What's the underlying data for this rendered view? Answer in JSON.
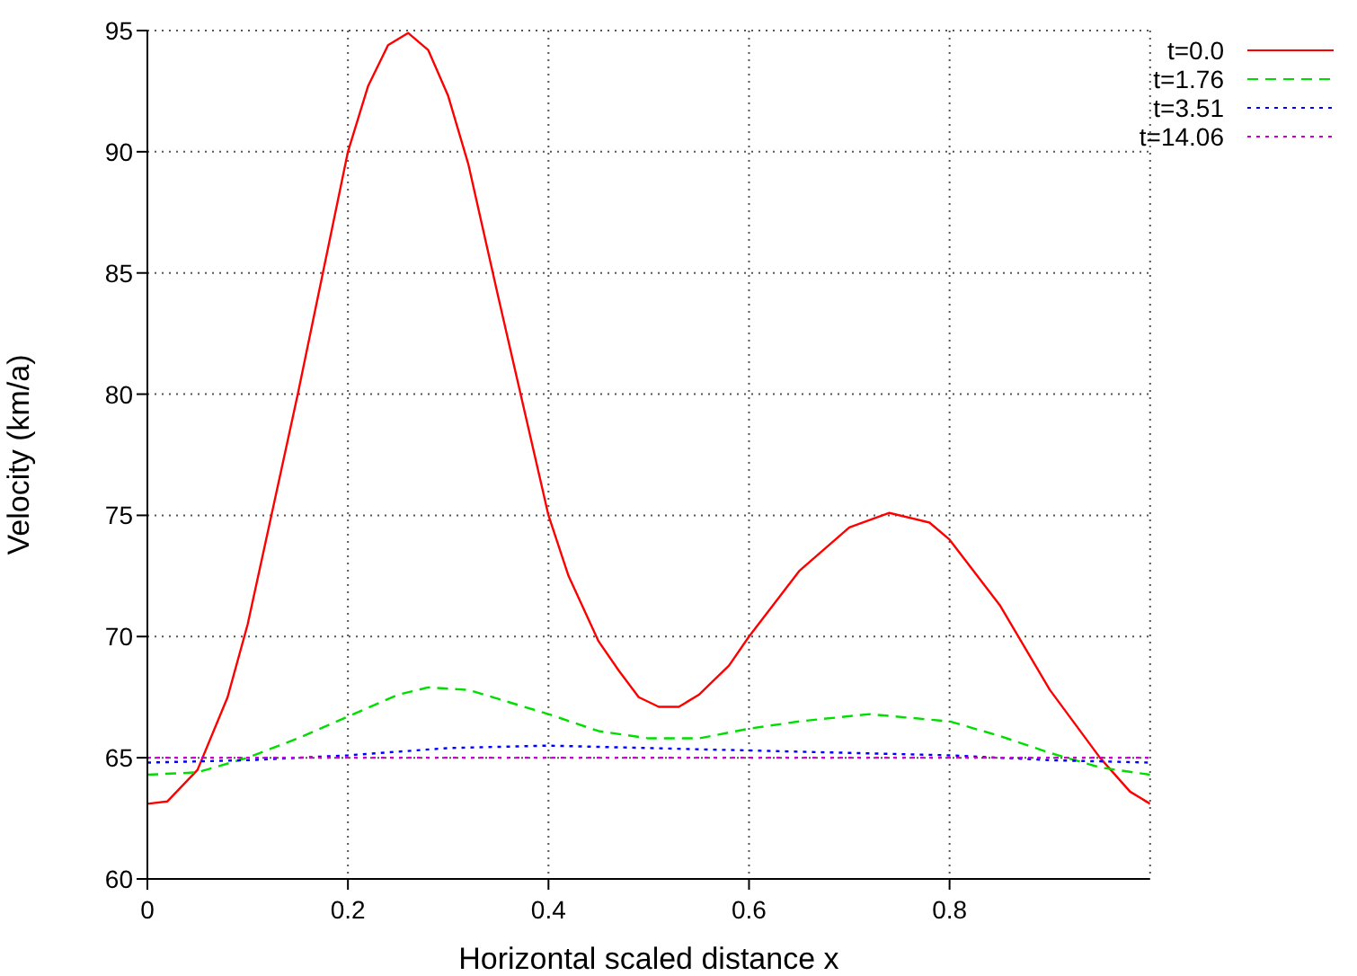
{
  "chart_data": {
    "type": "line",
    "xlabel": "Horizontal scaled distance x",
    "ylabel": "Velocity (km/a)",
    "xlim": [
      0,
      1
    ],
    "xticks": [
      0,
      0.2,
      0.4,
      0.6,
      0.8
    ],
    "ylim": [
      60,
      95
    ],
    "yticks": [
      60,
      65,
      70,
      75,
      80,
      85,
      90,
      95
    ],
    "grid": true,
    "legend": "top right",
    "marker": "none",
    "series": [
      {
        "name": "t=0.0",
        "color": "#ff0000",
        "line_style": "solid",
        "x": [
          0,
          0.02,
          0.05,
          0.08,
          0.1,
          0.15,
          0.2,
          0.22,
          0.24,
          0.26,
          0.28,
          0.3,
          0.32,
          0.35,
          0.4,
          0.42,
          0.45,
          0.47,
          0.49,
          0.51,
          0.53,
          0.55,
          0.58,
          0.6,
          0.65,
          0.7,
          0.74,
          0.78,
          0.8,
          0.85,
          0.9,
          0.95,
          0.98,
          1
        ],
        "values": [
          63.1,
          63.2,
          64.5,
          67.5,
          70.5,
          80,
          90,
          92.7,
          94.4,
          94.9,
          94.2,
          92.3,
          89.5,
          84,
          75,
          72.5,
          69.8,
          68.6,
          67.5,
          67.1,
          67.1,
          67.6,
          68.8,
          70,
          72.7,
          74.5,
          75.1,
          74.7,
          74,
          71.3,
          67.8,
          65,
          63.6,
          63.1
        ]
      },
      {
        "name": "t=1.76",
        "color": "#00dd00",
        "line_style": "dashed",
        "x": [
          0,
          0.05,
          0.1,
          0.15,
          0.2,
          0.25,
          0.28,
          0.32,
          0.4,
          0.45,
          0.5,
          0.55,
          0.6,
          0.65,
          0.72,
          0.8,
          0.85,
          0.9,
          0.95,
          1
        ],
        "values": [
          64.3,
          64.4,
          65,
          65.8,
          66.7,
          67.6,
          67.9,
          67.8,
          66.8,
          66.1,
          65.8,
          65.8,
          66.2,
          66.5,
          66.8,
          66.5,
          65.9,
          65.2,
          64.6,
          64.3
        ]
      },
      {
        "name": "t=3.51",
        "color": "#0000ff",
        "line_style": "dotted",
        "x": [
          0,
          0.1,
          0.2,
          0.3,
          0.4,
          0.5,
          0.6,
          0.7,
          0.8,
          0.9,
          1
        ],
        "values": [
          64.8,
          64.9,
          65.1,
          65.4,
          65.5,
          65.4,
          65.3,
          65.2,
          65.1,
          64.9,
          64.8
        ]
      },
      {
        "name": "t=14.06",
        "color": "#cc00cc",
        "line_style": "dotted",
        "x": [
          0,
          1
        ],
        "values": [
          65,
          65
        ]
      }
    ]
  }
}
